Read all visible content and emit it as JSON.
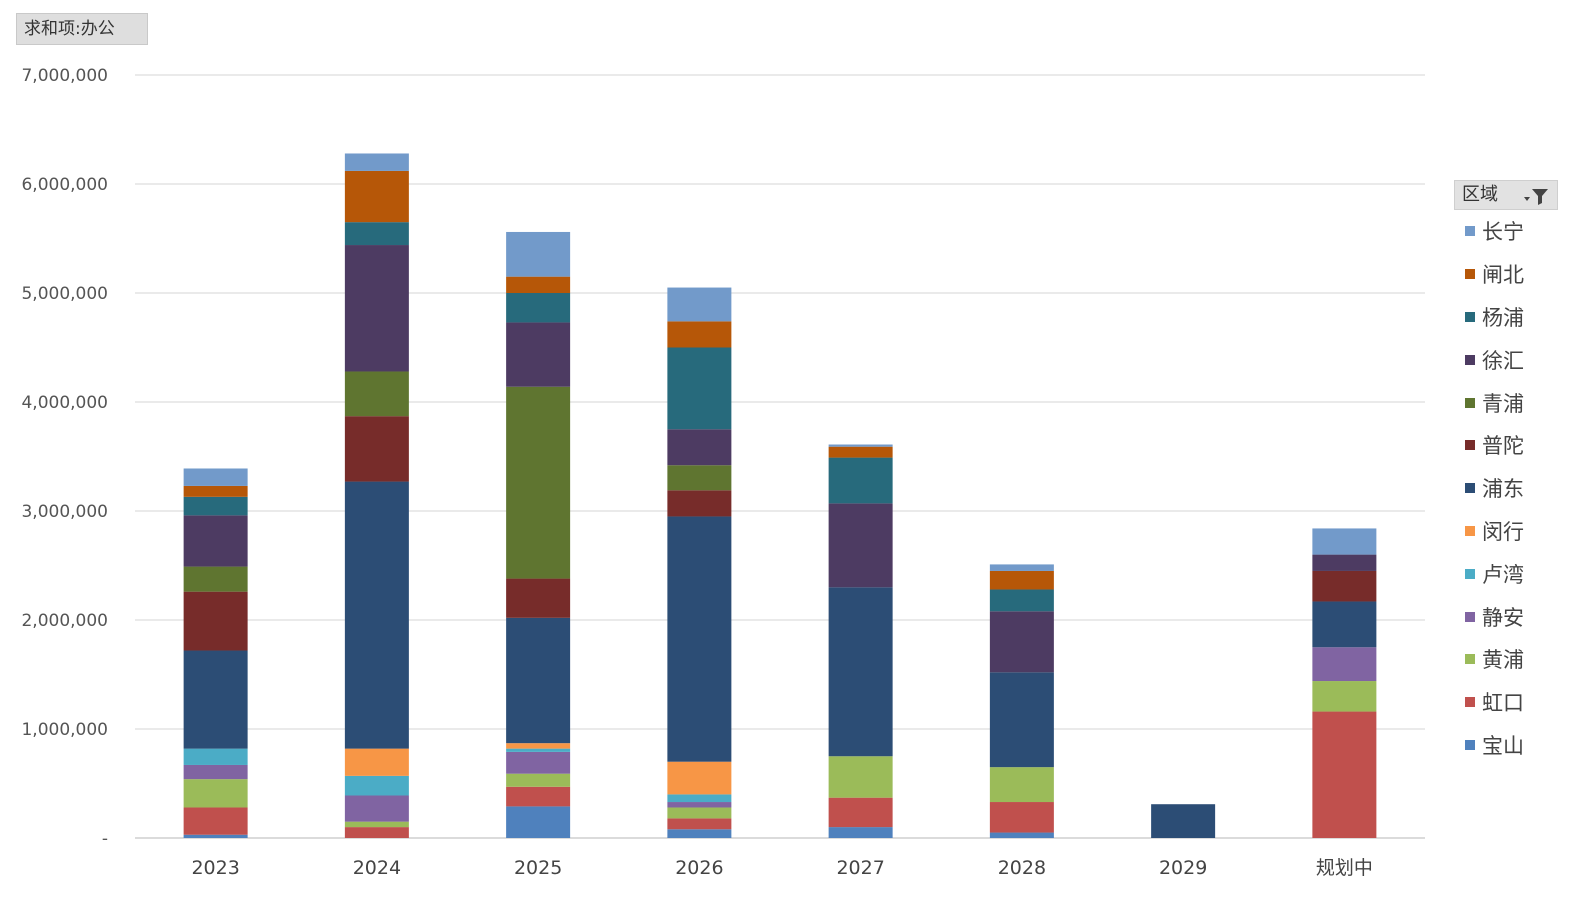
{
  "field_button": {
    "label": "求和项:办公"
  },
  "legend": {
    "title": "区域",
    "filter_icon": "filter-dropdown-icon"
  },
  "chart_data": {
    "type": "bar",
    "stacked": true,
    "categories": [
      "2023",
      "2024",
      "2025",
      "2026",
      "2027",
      "2028",
      "2029",
      "规划中"
    ],
    "ylim": [
      0,
      7000000
    ],
    "yticks": [
      0,
      1000000,
      2000000,
      3000000,
      4000000,
      5000000,
      6000000,
      7000000
    ],
    "ytick_labels": [
      "-",
      "1,000,000",
      "2,000,000",
      "3,000,000",
      "4,000,000",
      "5,000,000",
      "6,000,000",
      "7,000,000"
    ],
    "grid": true,
    "legend_position": "right",
    "series": [
      {
        "name": "宝山",
        "color": "#4f81bd",
        "values": [
          30000,
          0,
          290000,
          80000,
          100000,
          50000,
          0,
          0
        ]
      },
      {
        "name": "虹口",
        "color": "#c0504d",
        "values": [
          250000,
          100000,
          180000,
          100000,
          270000,
          280000,
          0,
          1160000
        ]
      },
      {
        "name": "黄浦",
        "color": "#9bbb59",
        "values": [
          260000,
          50000,
          120000,
          100000,
          380000,
          320000,
          0,
          280000
        ]
      },
      {
        "name": "静安",
        "color": "#8064a2",
        "values": [
          130000,
          240000,
          200000,
          50000,
          0,
          0,
          0,
          310000
        ]
      },
      {
        "name": "卢湾",
        "color": "#4bacc6",
        "values": [
          150000,
          180000,
          30000,
          70000,
          0,
          0,
          0,
          0
        ]
      },
      {
        "name": "闵行",
        "color": "#f79646",
        "values": [
          0,
          250000,
          50000,
          300000,
          0,
          0,
          0,
          0
        ]
      },
      {
        "name": "浦东",
        "color": "#2c4d75",
        "values": [
          900000,
          2450000,
          1150000,
          2250000,
          1550000,
          870000,
          310000,
          420000
        ]
      },
      {
        "name": "普陀",
        "color": "#772c2a",
        "values": [
          540000,
          600000,
          360000,
          240000,
          0,
          0,
          0,
          280000
        ]
      },
      {
        "name": "青浦",
        "color": "#5f7530",
        "values": [
          230000,
          410000,
          1760000,
          230000,
          0,
          0,
          0,
          0
        ]
      },
      {
        "name": "徐汇",
        "color": "#4d3b62",
        "values": [
          470000,
          1160000,
          590000,
          330000,
          770000,
          560000,
          0,
          150000
        ]
      },
      {
        "name": "杨浦",
        "color": "#276a7c",
        "values": [
          170000,
          210000,
          270000,
          750000,
          420000,
          200000,
          0,
          0
        ]
      },
      {
        "name": "闸北",
        "color": "#b65708",
        "values": [
          100000,
          470000,
          150000,
          240000,
          100000,
          170000,
          0,
          0
        ]
      },
      {
        "name": "长宁",
        "color": "#729aca",
        "values": [
          160000,
          160000,
          410000,
          310000,
          20000,
          60000,
          0,
          240000
        ]
      }
    ]
  }
}
